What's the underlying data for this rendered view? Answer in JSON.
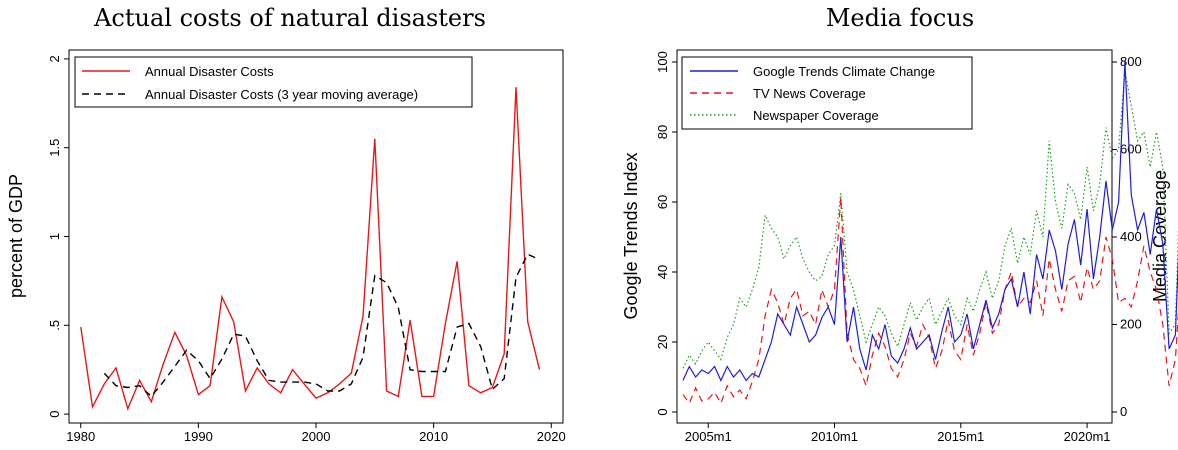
{
  "chart_data": [
    {
      "type": "line",
      "title": "Actual costs of natural disasters",
      "xlabel": "",
      "ylabel": "percent of GDP",
      "xlim": [
        1979,
        2021
      ],
      "ylim": [
        -0.05,
        2.05
      ],
      "xticks": [
        1980,
        1990,
        2000,
        2010,
        2020
      ],
      "yticks": [
        0,
        0.5,
        1,
        1.5,
        2
      ],
      "ytick_labels": [
        "0",
        ".5",
        "1",
        "1.5",
        "2"
      ],
      "grid": false,
      "legend_position": "top-left",
      "series": [
        {
          "name": "Annual Disaster Costs",
          "color": "#e31a1c",
          "dash": "solid",
          "x": [
            1980,
            1981,
            1982,
            1983,
            1984,
            1985,
            1986,
            1987,
            1988,
            1989,
            1990,
            1991,
            1992,
            1993,
            1994,
            1995,
            1996,
            1997,
            1998,
            1999,
            2000,
            2001,
            2002,
            2003,
            2004,
            2005,
            2006,
            2007,
            2008,
            2009,
            2010,
            2011,
            2012,
            2013,
            2014,
            2015,
            2016,
            2017,
            2018,
            2019
          ],
          "values": [
            0.49,
            0.04,
            0.17,
            0.26,
            0.03,
            0.19,
            0.07,
            0.28,
            0.46,
            0.33,
            0.11,
            0.16,
            0.66,
            0.52,
            0.13,
            0.26,
            0.17,
            0.12,
            0.25,
            0.17,
            0.09,
            0.12,
            0.17,
            0.23,
            0.55,
            1.55,
            0.13,
            0.1,
            0.53,
            0.1,
            0.1,
            0.51,
            0.86,
            0.16,
            0.12,
            0.15,
            0.34,
            1.84,
            0.52,
            0.25
          ]
        },
        {
          "name": "Annual Disaster Costs (3 year moving average)",
          "color": "#000000",
          "dash": "dashed",
          "x": [
            1982,
            1983,
            1984,
            1985,
            1986,
            1987,
            1988,
            1989,
            1990,
            1991,
            1992,
            1993,
            1994,
            1995,
            1996,
            1997,
            1998,
            1999,
            2000,
            2001,
            2002,
            2003,
            2004,
            2005,
            2006,
            2007,
            2008,
            2009,
            2010,
            2011,
            2012,
            2013,
            2014,
            2015,
            2016,
            2017,
            2018,
            2019
          ],
          "values": [
            0.23,
            0.16,
            0.15,
            0.16,
            0.1,
            0.18,
            0.27,
            0.36,
            0.3,
            0.2,
            0.31,
            0.45,
            0.44,
            0.3,
            0.19,
            0.18,
            0.18,
            0.18,
            0.17,
            0.13,
            0.13,
            0.17,
            0.32,
            0.78,
            0.74,
            0.6,
            0.25,
            0.24,
            0.24,
            0.24,
            0.49,
            0.51,
            0.38,
            0.14,
            0.2,
            0.77,
            0.9,
            0.87
          ]
        }
      ]
    },
    {
      "type": "line",
      "title": "Media focus",
      "xlabel": "",
      "ylabel": "Google Trends Index",
      "ylabel_right": "Media Coverage",
      "xlim": [
        2004.0,
        2020.75
      ],
      "xticks": [
        2005,
        2010,
        2015,
        2020
      ],
      "xtick_labels": [
        "2005m1",
        "2010m1",
        "2015m1",
        "2020m1"
      ],
      "ylim": [
        0,
        100
      ],
      "yticks": [
        0,
        20,
        40,
        60,
        80,
        100
      ],
      "ylim_right": [
        0,
        800
      ],
      "yticks_right": [
        0,
        200,
        400,
        600,
        800
      ],
      "grid": false,
      "legend_position": "top-left",
      "series": [
        {
          "name": "Google Trends Climate Change",
          "color": "#1f1fd6",
          "dash": "solid",
          "axis": "left",
          "x_start": 2004.0,
          "x_step": 0.25,
          "values": [
            9,
            13,
            10,
            12,
            11,
            13,
            9,
            13,
            10,
            12,
            9,
            11,
            10,
            15,
            20,
            28,
            25,
            22,
            30,
            25,
            20,
            22,
            27,
            30,
            25,
            50,
            20,
            30,
            18,
            12,
            22,
            18,
            25,
            16,
            14,
            18,
            24,
            18,
            20,
            22,
            15,
            23,
            30,
            20,
            22,
            28,
            18,
            25,
            32,
            24,
            28,
            35,
            38,
            30,
            40,
            28,
            45,
            38,
            52,
            46,
            35,
            48,
            55,
            42,
            58,
            38,
            50,
            66,
            52,
            60,
            100,
            62,
            52,
            57,
            45,
            58,
            48,
            18,
            22,
            69
          ]
        },
        {
          "name": "TV News Coverage",
          "color": "#e31a1c",
          "dash": "dashed",
          "axis": "right",
          "x_start": 2004.0,
          "x_step": 0.25,
          "values": [
            40,
            20,
            55,
            25,
            30,
            45,
            20,
            60,
            35,
            50,
            30,
            70,
            120,
            220,
            280,
            250,
            200,
            260,
            280,
            220,
            230,
            200,
            280,
            240,
            280,
            490,
            180,
            120,
            100,
            60,
            130,
            180,
            150,
            100,
            80,
            120,
            180,
            150,
            200,
            170,
            100,
            140,
            210,
            140,
            120,
            200,
            130,
            180,
            250,
            180,
            200,
            280,
            320,
            240,
            260,
            250,
            300,
            220,
            350,
            280,
            230,
            300,
            310,
            250,
            330,
            280,
            300,
            400,
            350,
            250,
            260,
            240,
            300,
            380,
            320,
            280,
            200,
            60,
            120,
            350
          ]
        },
        {
          "name": "Newspaper Coverage",
          "color": "#1a9e1a",
          "dash": "dotted",
          "axis": "right",
          "x_start": 2004.0,
          "x_step": 0.25,
          "values": [
            100,
            130,
            110,
            140,
            160,
            140,
            120,
            170,
            200,
            260,
            240,
            280,
            330,
            450,
            420,
            400,
            350,
            380,
            400,
            350,
            320,
            300,
            310,
            360,
            380,
            500,
            320,
            280,
            220,
            160,
            200,
            240,
            220,
            180,
            150,
            200,
            250,
            210,
            240,
            260,
            200,
            230,
            260,
            220,
            200,
            260,
            230,
            280,
            320,
            260,
            300,
            380,
            420,
            340,
            400,
            360,
            460,
            400,
            620,
            480,
            420,
            520,
            500,
            440,
            560,
            460,
            520,
            650,
            580,
            600,
            780,
            700,
            620,
            640,
            560,
            640,
            560,
            180,
            200,
            650
          ]
        }
      ]
    }
  ]
}
